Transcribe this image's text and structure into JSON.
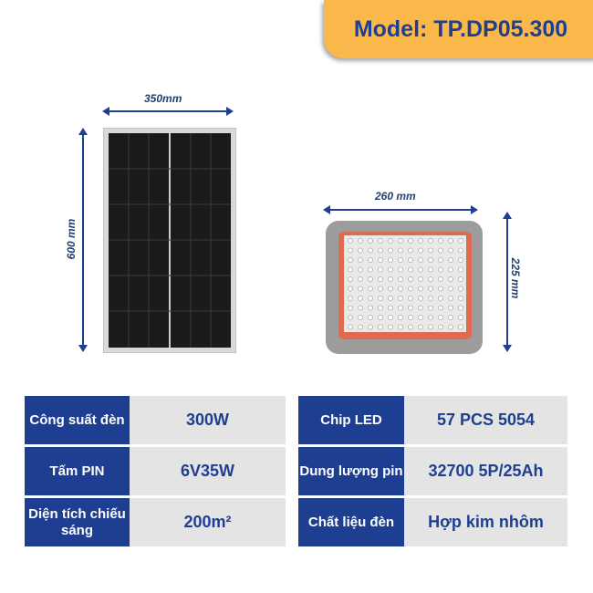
{
  "model": "Model: TP.DP05.300",
  "panel": {
    "width_label": "350mm",
    "height_label": "600 mm"
  },
  "lamp": {
    "width_label": "260 mm",
    "height_label": "225 mm"
  },
  "specs_left": [
    {
      "label": "Công suất đèn",
      "value": "300W"
    },
    {
      "label": "Tấm PIN",
      "value": "6V35W"
    },
    {
      "label": "Diện tích chiếu sáng",
      "value": "200m²"
    }
  ],
  "specs_right": [
    {
      "label": "Chip LED",
      "value": "57 PCS 5054"
    },
    {
      "label": "Dung lượng pin",
      "value": "32700 5P/25Ah"
    },
    {
      "label": "Chất liệu đèn",
      "value": "Hợp kim nhôm"
    }
  ],
  "colors": {
    "brand_blue": "#1e3f91",
    "badge": "#fbb84a",
    "cell": "#e4e4e4"
  }
}
